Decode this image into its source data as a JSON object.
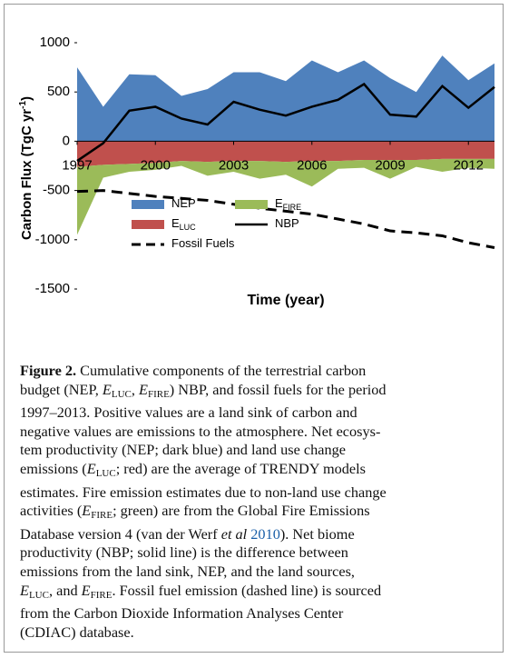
{
  "chart_data": {
    "type": "area-line",
    "xlabel": "Time (year)",
    "ylabel": "Carbon Flux (TgC yr",
    "ylabel_sup": "-1",
    "ylabel_end": ")",
    "x": [
      1997,
      1998,
      1999,
      2000,
      2001,
      2002,
      2003,
      2004,
      2005,
      2006,
      2007,
      2008,
      2009,
      2010,
      2011,
      2012,
      2013
    ],
    "xlim": [
      1997,
      2013
    ],
    "xticks": [
      1997,
      2000,
      2003,
      2006,
      2009,
      2012
    ],
    "ylim": [
      -1500,
      1000
    ],
    "yticks": [
      1000,
      500,
      0,
      -500,
      -1000,
      -1500
    ],
    "series": [
      {
        "name": "NEP",
        "color": "#4f81bd",
        "kind": "area",
        "values": [
          750,
          350,
          680,
          670,
          460,
          530,
          700,
          700,
          610,
          820,
          700,
          820,
          640,
          500,
          870,
          620,
          790
        ]
      },
      {
        "name": "E",
        "name_sub": "FIRE",
        "color": "#9bbb59",
        "kind": "area",
        "values": [
          -690,
          -130,
          -80,
          -70,
          -50,
          -140,
          -110,
          -180,
          -130,
          -260,
          -80,
          -80,
          -190,
          -70,
          -130,
          -90,
          -100
        ]
      },
      {
        "name": "E",
        "name_sub": "LUC",
        "color": "#c0504d",
        "kind": "area",
        "values": [
          -260,
          -240,
          -230,
          -220,
          -200,
          -210,
          -200,
          -200,
          -210,
          -200,
          -200,
          -190,
          -190,
          -190,
          -180,
          -180,
          -180
        ]
      },
      {
        "name": "NBP",
        "color": "#000000",
        "kind": "line",
        "values": [
          -200,
          -20,
          310,
          350,
          230,
          170,
          400,
          320,
          260,
          350,
          420,
          580,
          270,
          250,
          560,
          340,
          550
        ]
      },
      {
        "name": "Fossil Fuels",
        "color": "#000000",
        "kind": "dashed",
        "values": [
          -510,
          -500,
          -530,
          -560,
          -580,
          -600,
          -640,
          -680,
          -710,
          -740,
          -790,
          -840,
          -910,
          -930,
          -960,
          -1030,
          -1080
        ]
      }
    ]
  },
  "caption": {
    "lines": [
      [
        "Figure 2.",
        " Cumulative components of the terrestrial carbon"
      ],
      [
        "budget (NEP, ",
        "E",
        "LUC",
        ", ",
        "E",
        "FIRE",
        ") NBP, and fossil fuels for the period"
      ],
      [
        "1997–2013. Positive values are a land sink of carbon and"
      ],
      [
        "negative values are emissions to the atmosphere. Net ecosys-"
      ],
      [
        "tem productivity (NEP; dark blue) and land use change"
      ],
      [
        "emissions (",
        "E",
        "LUC",
        "; red) are the average of TRENDY models"
      ],
      [
        "estimates. Fire emission estimates due to non-land use change"
      ],
      [
        "activities (",
        "E",
        "FIRE",
        "; green) are from the Global Fire Emissions"
      ],
      [
        "Database version 4 (van der Werf ",
        "et al",
        " ",
        "2010",
        "). Net biome"
      ],
      [
        "productivity (NBP; solid line) is the difference between"
      ],
      [
        "emissions from the land sink, NEP, and the land sources,"
      ],
      [
        "E",
        "LUC",
        ", and ",
        "E",
        "FIRE",
        ". Fossil fuel emission (dashed line) is sourced"
      ],
      [
        "from the Carbon Dioxide Information Analyses Center"
      ],
      [
        "(CDIAC) database."
      ]
    ]
  }
}
